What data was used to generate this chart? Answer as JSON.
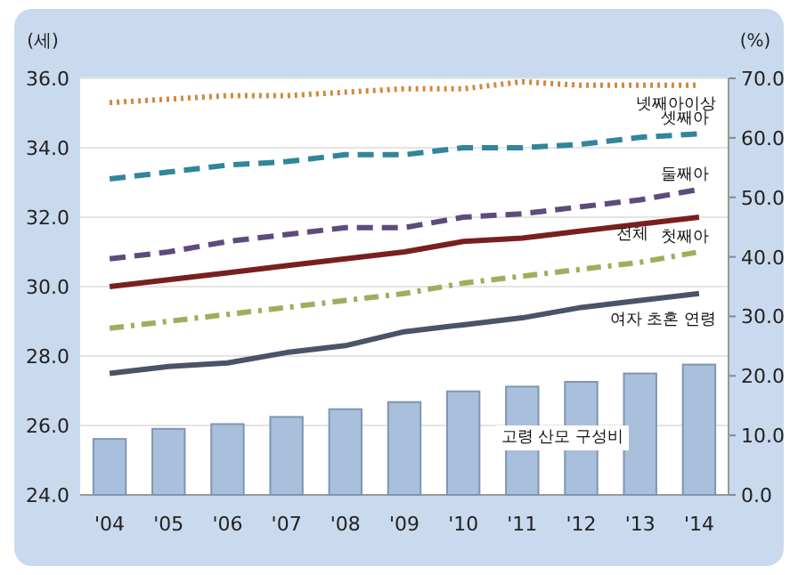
{
  "chart_data": {
    "type": "line",
    "ylabel": "(세)",
    "y2label": "(%)",
    "categories": [
      "'04",
      "'05",
      "'06",
      "'07",
      "'08",
      "'09",
      "'10",
      "'11",
      "'12",
      "'13",
      "'14"
    ],
    "ylim": [
      24,
      36
    ],
    "yticks": [
      {
        "value": 24,
        "label": "24.0"
      },
      {
        "value": 26,
        "label": "26.0"
      },
      {
        "value": 28,
        "label": "28.0"
      },
      {
        "value": 30,
        "label": "30.0"
      },
      {
        "value": 32,
        "label": "32.0"
      },
      {
        "value": 34,
        "label": "34.0"
      },
      {
        "value": 36,
        "label": "36.0"
      }
    ],
    "y2lim": [
      0,
      70
    ],
    "y2ticks": [
      {
        "value": 0,
        "label": "0.0"
      },
      {
        "value": 10,
        "label": "10.0"
      },
      {
        "value": 20,
        "label": "20.0"
      },
      {
        "value": 30,
        "label": "30.0"
      },
      {
        "value": 40,
        "label": "40.0"
      },
      {
        "value": 50,
        "label": "50.0"
      },
      {
        "value": 60,
        "label": "60.0"
      },
      {
        "value": 70,
        "label": "70.0"
      }
    ],
    "grid": "y",
    "marker": "none",
    "series": [
      {
        "name": "고령 산모 구성비",
        "type": "bar",
        "axis": "y2",
        "color": "#a9c0dc",
        "values": [
          9.4,
          11.1,
          11.9,
          13.1,
          14.4,
          15.6,
          17.4,
          18.2,
          19.0,
          20.4,
          21.9
        ]
      },
      {
        "name": "넷째아이상",
        "line_style": "dotted",
        "color": "#d0893a",
        "values": [
          35.3,
          35.4,
          35.5,
          35.5,
          35.6,
          35.7,
          35.7,
          35.9,
          35.8,
          35.8,
          35.8
        ]
      },
      {
        "name": "셋째아",
        "line_style": "dashed",
        "color": "#31859c",
        "values": [
          33.1,
          33.3,
          33.5,
          33.6,
          33.8,
          33.8,
          34.0,
          34.0,
          34.1,
          34.3,
          34.4
        ]
      },
      {
        "name": "둘째아",
        "line_style": "dashed",
        "color": "#604a7b",
        "values": [
          30.8,
          31.0,
          31.3,
          31.5,
          31.7,
          31.7,
          32.0,
          32.1,
          32.3,
          32.5,
          32.8
        ]
      },
      {
        "name": "전체",
        "line_style": "solid",
        "color": "#7a1f1f",
        "values": [
          30.0,
          30.2,
          30.4,
          30.6,
          30.8,
          31.0,
          31.3,
          31.4,
          31.6,
          31.8,
          32.0
        ]
      },
      {
        "name": "첫째아",
        "line_style": "dashdot",
        "color": "#a4ab5e",
        "values": [
          28.8,
          29.0,
          29.2,
          29.4,
          29.6,
          29.8,
          30.1,
          30.3,
          30.5,
          30.7,
          31.0
        ]
      },
      {
        "name": "여자 초혼 연령",
        "line_style": "solid",
        "color": "#4a5468",
        "values": [
          27.5,
          27.7,
          27.8,
          28.1,
          28.3,
          28.7,
          28.9,
          29.1,
          29.4,
          29.6,
          29.8
        ]
      }
    ]
  }
}
